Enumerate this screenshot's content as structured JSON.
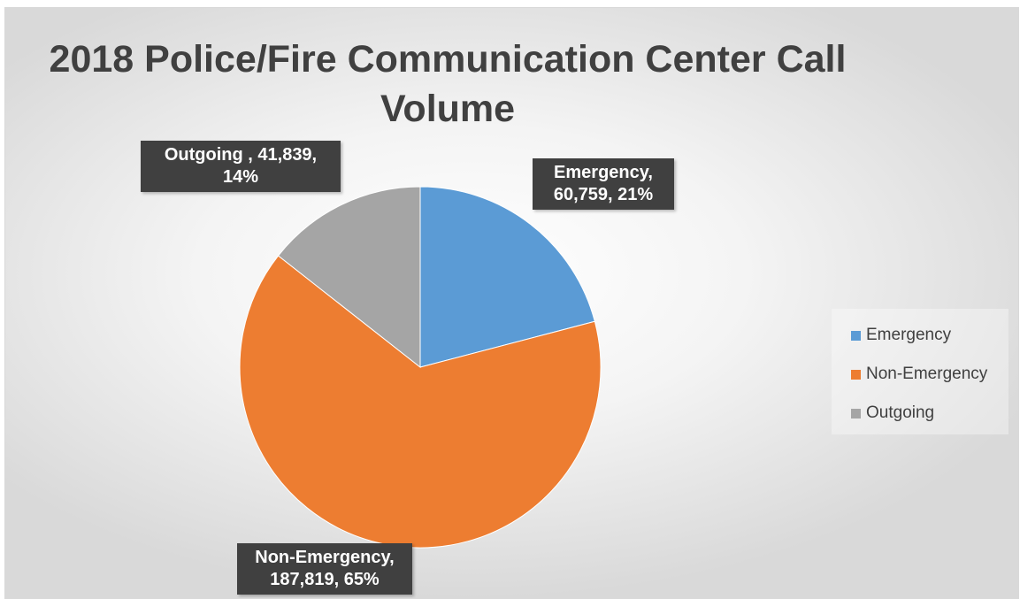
{
  "chart_data": {
    "type": "pie",
    "title": "2018 Police/Fire Communication Center Call Volume",
    "series": [
      {
        "name": "Emergency",
        "value": 60759,
        "percent": 21,
        "color": "#5B9BD5",
        "label": "Emergency,\n60,759, 21%"
      },
      {
        "name": "Non-Emergency",
        "value": 187819,
        "percent": 65,
        "color": "#ED7D31",
        "label": "Non-Emergency,\n187,819, 65%"
      },
      {
        "name": "Outgoing",
        "value": 41839,
        "percent": 14,
        "color": "#A5A5A5",
        "label": "Outgoing , 41,839,\n14%"
      }
    ],
    "legend": {
      "position": "right",
      "entries": [
        "Emergency",
        "Non-Emergency",
        "Outgoing"
      ]
    }
  }
}
